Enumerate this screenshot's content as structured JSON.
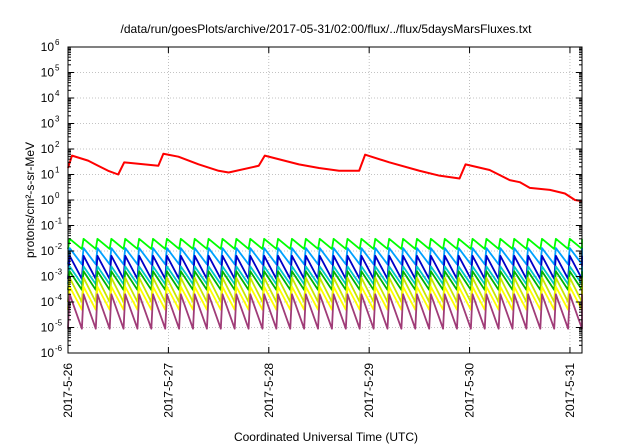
{
  "chart_data": {
    "type": "line",
    "title": "/data/run/goesPlots/archive/2017-05-31/02:00/flux/../flux/5daysMarsFluxes.txt",
    "xlabel": "Coordinated Universal Time (UTC)",
    "ylabel": "protons/cm²-s-sr-MeV",
    "yscale": "log",
    "ylim": [
      1e-06,
      1000000.0
    ],
    "xlim": [
      0,
      5.12
    ],
    "y_ticks": [
      {
        "base": "10",
        "exp": "-6"
      },
      {
        "base": "10",
        "exp": "-5"
      },
      {
        "base": "10",
        "exp": "-4"
      },
      {
        "base": "10",
        "exp": "-3"
      },
      {
        "base": "10",
        "exp": "-2"
      },
      {
        "base": "10",
        "exp": "-1"
      },
      {
        "base": "10",
        "exp": "0"
      },
      {
        "base": "10",
        "exp": "1"
      },
      {
        "base": "10",
        "exp": "2"
      },
      {
        "base": "10",
        "exp": "3"
      },
      {
        "base": "10",
        "exp": "4"
      },
      {
        "base": "10",
        "exp": "5"
      },
      {
        "base": "10",
        "exp": "6"
      }
    ],
    "x_ticks": [
      "2017-5-26",
      "2017-5-27",
      "2017-5-28",
      "2017-5-29",
      "2017-5-30",
      "2017-5-31"
    ],
    "grid": true,
    "legend": "none",
    "series": [
      {
        "color": "#ff0000",
        "points": [
          [
            0.0,
            18
          ],
          [
            0.04,
            55
          ],
          [
            0.2,
            35
          ],
          [
            0.3,
            22
          ],
          [
            0.4,
            14
          ],
          [
            0.5,
            10
          ],
          [
            0.56,
            30
          ],
          [
            0.9,
            22
          ],
          [
            0.95,
            65
          ],
          [
            1.1,
            50
          ],
          [
            1.3,
            25
          ],
          [
            1.5,
            14
          ],
          [
            1.6,
            12
          ],
          [
            1.9,
            22
          ],
          [
            1.96,
            55
          ],
          [
            2.3,
            25
          ],
          [
            2.5,
            18
          ],
          [
            2.7,
            14
          ],
          [
            2.9,
            14
          ],
          [
            2.96,
            60
          ],
          [
            3.2,
            30
          ],
          [
            3.5,
            14
          ],
          [
            3.7,
            9
          ],
          [
            3.9,
            7
          ],
          [
            3.96,
            25
          ],
          [
            4.2,
            15
          ],
          [
            4.4,
            6
          ],
          [
            4.5,
            5
          ],
          [
            4.6,
            3
          ],
          [
            4.8,
            2.5
          ],
          [
            4.95,
            1.8
          ],
          [
            5.05,
            1.0
          ],
          [
            5.12,
            0.9
          ]
        ]
      },
      {
        "color": "#00ff00",
        "min": 0.012,
        "max": 0.03,
        "cycles": 37
      },
      {
        "color": "#00a0ff",
        "min": 0.003,
        "max": 0.013,
        "cycles": 37
      },
      {
        "color": "#0000c8",
        "min": 0.0008,
        "max": 0.0065,
        "cycles": 37
      },
      {
        "color": "#00c8c8",
        "min": 0.0005,
        "max": 0.0025,
        "cycles": 37
      },
      {
        "color": "#00b400",
        "min": 0.0003,
        "max": 0.0016,
        "cycles": 37
      },
      {
        "color": "#c8e600",
        "min": 0.0001,
        "max": 0.0009,
        "cycles": 37
      },
      {
        "color": "#ffff00",
        "min": 5e-05,
        "max": 0.0004,
        "cycles": 37
      },
      {
        "color": "#a03c78",
        "min": 9e-06,
        "max": 0.0002,
        "cycles": 37
      }
    ]
  }
}
